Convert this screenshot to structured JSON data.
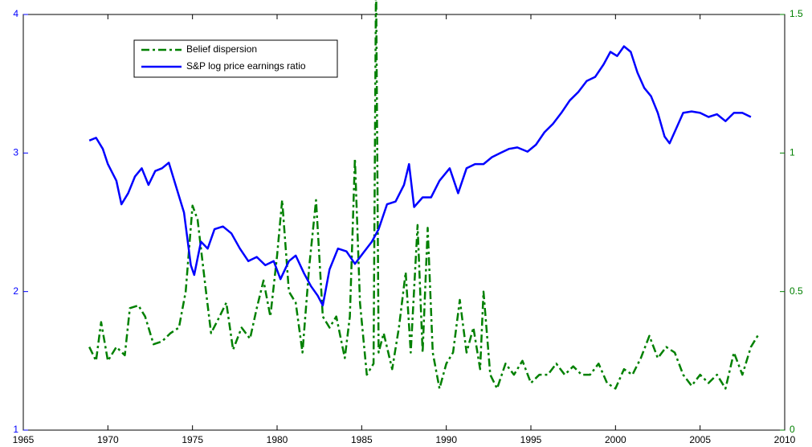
{
  "chart_data": {
    "type": "line",
    "xlim": [
      1965,
      2010
    ],
    "xticks": [
      1965,
      1970,
      1975,
      1980,
      1985,
      1990,
      1995,
      2000,
      2005,
      2010
    ],
    "ylim": [
      1,
      4
    ],
    "yticks": [
      1,
      2,
      3,
      4
    ],
    "y2lim": [
      0,
      1.5
    ],
    "y2ticks": [
      0,
      0.5,
      1,
      1.5
    ],
    "legend": "upper left",
    "series": [
      {
        "name": "Belief dispersion",
        "color": "#008000",
        "style": "dashdot",
        "axis": "y2",
        "x": [
          1968.9,
          1969.3,
          1969.6,
          1970.0,
          1970.5,
          1971.0,
          1971.3,
          1971.8,
          1972.2,
          1972.7,
          1973.2,
          1973.7,
          1974.2,
          1974.6,
          1975.0,
          1975.3,
          1975.8,
          1976.1,
          1976.6,
          1977.0,
          1977.4,
          1977.9,
          1978.4,
          1978.8,
          1979.2,
          1979.6,
          1980.0,
          1980.3,
          1980.7,
          1981.1,
          1981.5,
          1981.9,
          1982.3,
          1982.7,
          1983.1,
          1983.5,
          1984.0,
          1984.3,
          1984.6,
          1984.9,
          1985.3,
          1985.7,
          1985.85,
          1986.0,
          1986.3,
          1986.8,
          1987.2,
          1987.6,
          1987.9,
          1988.3,
          1988.6,
          1988.9,
          1989.2,
          1989.6,
          1990.0,
          1990.4,
          1990.8,
          1991.2,
          1991.6,
          1992.0,
          1992.2,
          1992.6,
          1993.0,
          1993.5,
          1994.0,
          1994.5,
          1995.0,
          1995.5,
          1996.0,
          1996.5,
          1997.0,
          1997.5,
          1998.0,
          1998.5,
          1999.0,
          1999.5,
          2000.0,
          2000.5,
          2001.0,
          2001.5,
          2002.0,
          2002.5,
          2003.0,
          2003.5,
          2004.0,
          2004.5,
          2005.0,
          2005.5,
          2006.0,
          2006.5,
          2007.0,
          2007.5,
          2008.0,
          2008.5
        ],
        "values": [
          0.3,
          0.25,
          0.39,
          0.25,
          0.3,
          0.27,
          0.44,
          0.45,
          0.41,
          0.31,
          0.32,
          0.35,
          0.37,
          0.5,
          0.81,
          0.76,
          0.5,
          0.35,
          0.41,
          0.46,
          0.29,
          0.37,
          0.33,
          0.44,
          0.54,
          0.41,
          0.63,
          0.83,
          0.5,
          0.46,
          0.28,
          0.59,
          0.83,
          0.41,
          0.37,
          0.41,
          0.26,
          0.41,
          0.98,
          0.46,
          0.2,
          0.24,
          1.65,
          0.28,
          0.35,
          0.22,
          0.37,
          0.57,
          0.28,
          0.74,
          0.28,
          0.73,
          0.28,
          0.15,
          0.24,
          0.28,
          0.47,
          0.28,
          0.37,
          0.22,
          0.5,
          0.2,
          0.15,
          0.24,
          0.2,
          0.25,
          0.17,
          0.2,
          0.2,
          0.24,
          0.2,
          0.23,
          0.2,
          0.2,
          0.24,
          0.17,
          0.15,
          0.22,
          0.2,
          0.26,
          0.34,
          0.26,
          0.3,
          0.28,
          0.2,
          0.16,
          0.2,
          0.17,
          0.2,
          0.15,
          0.28,
          0.2,
          0.3,
          0.35
        ]
      },
      {
        "name": "S&P log price earnings ratio",
        "color": "#0000ff",
        "style": "solid",
        "axis": "y",
        "x": [
          1968.9,
          1969.3,
          1969.7,
          1970.0,
          1970.5,
          1970.8,
          1971.2,
          1971.6,
          1972.0,
          1972.4,
          1972.8,
          1973.2,
          1973.6,
          1974.0,
          1974.5,
          1974.9,
          1975.1,
          1975.5,
          1975.9,
          1976.3,
          1976.8,
          1977.3,
          1977.8,
          1978.3,
          1978.8,
          1979.3,
          1979.8,
          1980.2,
          1980.7,
          1981.1,
          1981.6,
          1982.0,
          1982.4,
          1982.7,
          1983.1,
          1983.6,
          1984.1,
          1984.6,
          1985.1,
          1985.6,
          1986.0,
          1986.5,
          1987.0,
          1987.5,
          1987.8,
          1988.1,
          1988.6,
          1989.1,
          1989.6,
          1990.2,
          1990.7,
          1991.2,
          1991.7,
          1992.2,
          1992.7,
          1993.2,
          1993.7,
          1994.2,
          1994.8,
          1995.3,
          1995.8,
          1996.3,
          1996.8,
          1997.3,
          1997.8,
          1998.3,
          1998.8,
          1999.3,
          1999.7,
          2000.1,
          2000.5,
          2000.9,
          2001.3,
          2001.7,
          2002.1,
          2002.5,
          2002.9,
          2003.2,
          2003.6,
          2004.0,
          2004.5,
          2005.0,
          2005.5,
          2006.0,
          2006.5,
          2007.0,
          2007.5,
          2008.0
        ],
        "values": [
          3.09,
          3.11,
          3.03,
          2.92,
          2.8,
          2.63,
          2.71,
          2.83,
          2.89,
          2.77,
          2.87,
          2.89,
          2.93,
          2.77,
          2.57,
          2.19,
          2.12,
          2.36,
          2.31,
          2.45,
          2.47,
          2.42,
          2.31,
          2.22,
          2.25,
          2.19,
          2.22,
          2.09,
          2.22,
          2.26,
          2.13,
          2.04,
          1.97,
          1.9,
          2.16,
          2.31,
          2.29,
          2.2,
          2.28,
          2.36,
          2.45,
          2.63,
          2.65,
          2.77,
          2.92,
          2.61,
          2.68,
          2.68,
          2.8,
          2.89,
          2.71,
          2.89,
          2.92,
          2.92,
          2.97,
          3.0,
          3.03,
          3.04,
          3.01,
          3.06,
          3.15,
          3.21,
          3.29,
          3.38,
          3.44,
          3.52,
          3.55,
          3.64,
          3.73,
          3.7,
          3.77,
          3.73,
          3.58,
          3.47,
          3.41,
          3.29,
          3.12,
          3.07,
          3.18,
          3.29,
          3.3,
          3.29,
          3.26,
          3.28,
          3.23,
          3.29,
          3.29,
          3.26
        ]
      }
    ]
  }
}
